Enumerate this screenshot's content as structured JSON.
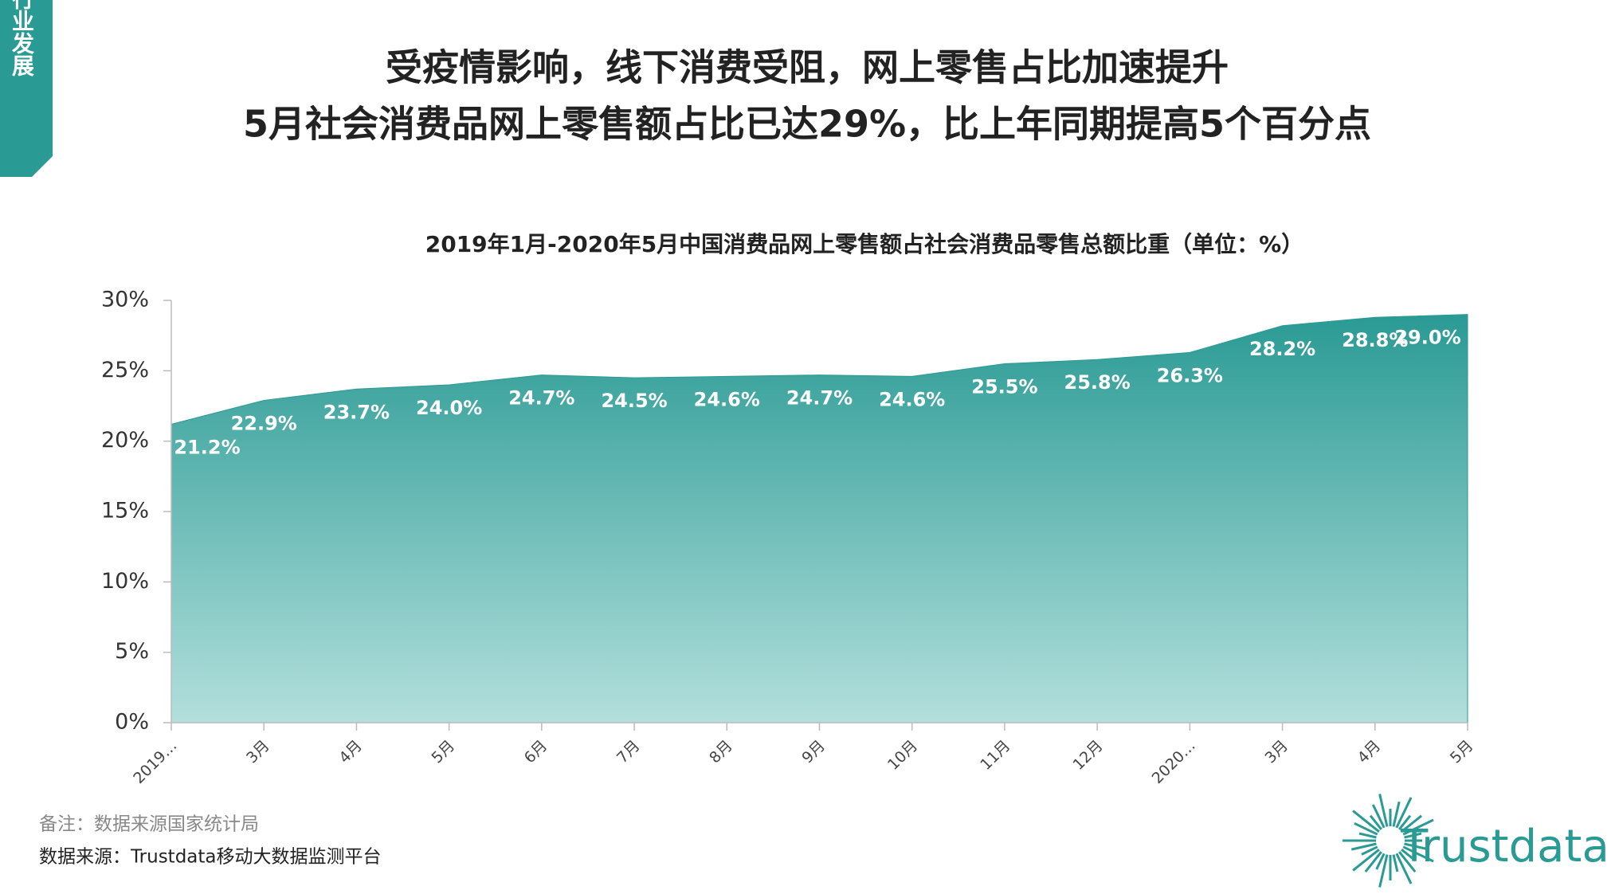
{
  "side_tab": "行业发展",
  "header": {
    "line1": "受疫情影响，线下消费受阻，网上零售占比加速提升",
    "line2": "5月社会消费品网上零售额占比已达29%，比上年同期提高5个百分点"
  },
  "chart_data": {
    "type": "area",
    "title": "2019年1月-2020年5月中国消费品网上零售额占社会消费品零售总额比重（单位：%）",
    "categories": [
      "2019…",
      "3月",
      "4月",
      "5月",
      "6月",
      "7月",
      "8月",
      "9月",
      "10月",
      "11月",
      "12月",
      "2020…",
      "3月",
      "4月",
      "5月"
    ],
    "values": [
      21.2,
      22.9,
      23.7,
      24.0,
      24.7,
      24.5,
      24.6,
      24.7,
      24.6,
      25.5,
      25.8,
      26.3,
      28.2,
      28.8,
      29.0
    ],
    "value_labels": [
      "21.2%",
      "22.9%",
      "23.7%",
      "24.0%",
      "24.7%",
      "24.5%",
      "24.6%",
      "24.7%",
      "24.6%",
      "25.5%",
      "25.8%",
      "26.3%",
      "28.2%",
      "28.8%",
      "29.0%"
    ],
    "color": "#2a9a94",
    "ylim": [
      0,
      30
    ],
    "yticks": [
      {
        "value": 0,
        "label": "0%"
      },
      {
        "value": 5,
        "label": "5%"
      },
      {
        "value": 10,
        "label": "10%"
      },
      {
        "value": 15,
        "label": "15%"
      },
      {
        "value": 20,
        "label": "20%"
      },
      {
        "value": 25,
        "label": "25%"
      },
      {
        "value": 30,
        "label": "30%"
      }
    ]
  },
  "notes": {
    "remark": "备注：数据来源国家统计局",
    "source": "数据来源：Trustdata移动大数据监测平台"
  },
  "logo": "Trustdata"
}
